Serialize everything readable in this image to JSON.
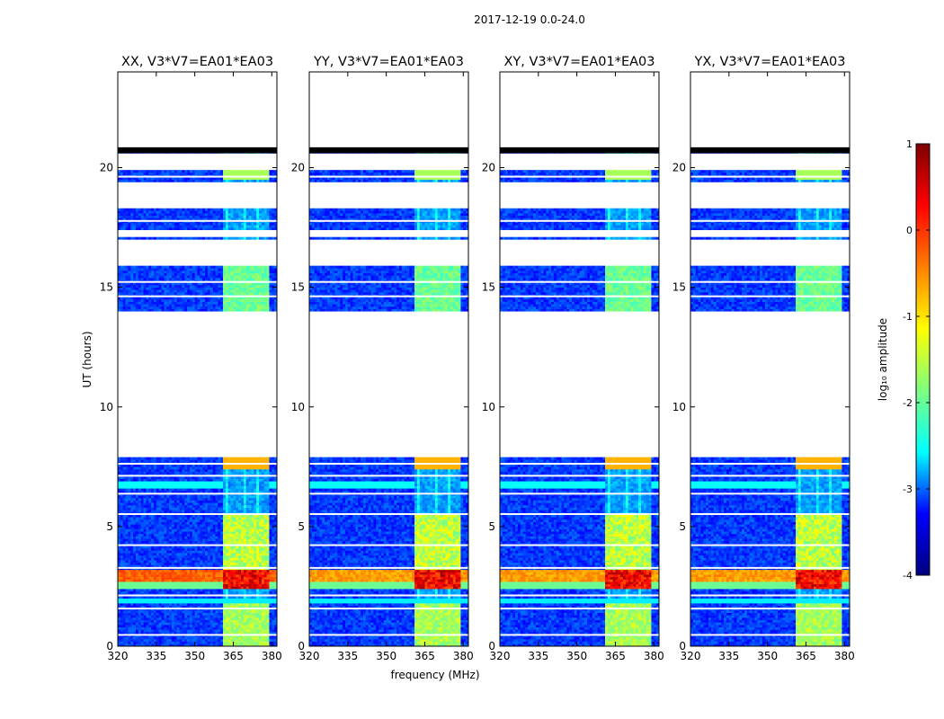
{
  "suptitle": "2017-12-19 0.0-24.0",
  "xlabel": "frequency (MHz)",
  "ylabel": "UT (hours)",
  "colorbar": {
    "label": "log₁₀ amplitude",
    "ticks": [
      1,
      0,
      -1,
      -2,
      -3,
      -4
    ],
    "range": [
      -4,
      1
    ],
    "colormap": "jet",
    "colors": [
      "#00007f",
      "#0000ff",
      "#00ffff",
      "#7fff7f",
      "#ffff00",
      "#ff7f00",
      "#ff0000",
      "#7f0000"
    ]
  },
  "chart_data": {
    "type": "heatmap",
    "x": {
      "range": [
        320,
        382
      ],
      "ticks": [
        320,
        335,
        350,
        365,
        380
      ]
    },
    "y": {
      "range": [
        0,
        24
      ],
      "ticks": [
        0,
        5,
        10,
        15,
        20
      ]
    },
    "panels": [
      {
        "title": "XX, V3*V7=EA01*EA03"
      },
      {
        "title": "YY, V3*V7=EA01*EA03"
      },
      {
        "title": "XY, V3*V7=EA01*EA03"
      },
      {
        "title": "YX, V3*V7=EA01*EA03"
      }
    ],
    "data_blocks_hours": [
      [
        0,
        7.9
      ],
      [
        14.0,
        15.9
      ],
      [
        17.0,
        17.1
      ],
      [
        17.4,
        18.3
      ],
      [
        19.4,
        19.9
      ],
      [
        20.6,
        20.8
      ]
    ],
    "strong_feature": {
      "ut_hours": [
        2.4,
        3.2
      ],
      "log10_amplitude": 0.5
    },
    "band_features_mhz": [
      361,
      364,
      366,
      368,
      371,
      373,
      376,
      378
    ]
  }
}
